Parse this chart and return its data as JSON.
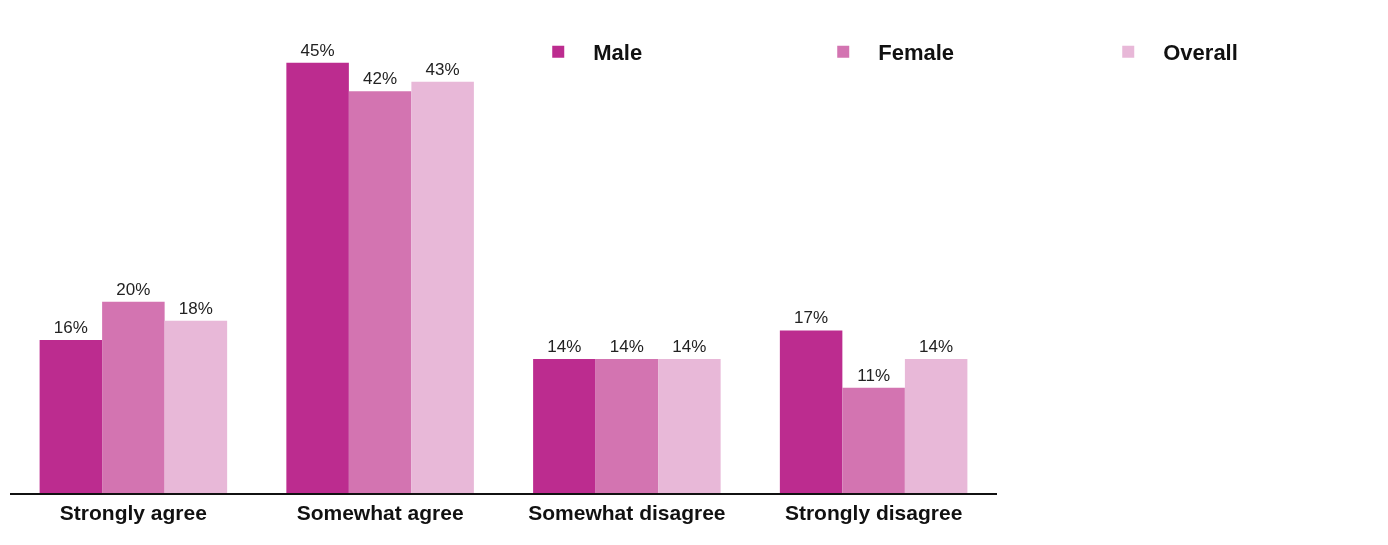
{
  "chart_data": {
    "type": "bar",
    "categories": [
      "Strongly agree",
      "Somewhat agree",
      "Somewhat disagree",
      "Strongly disagree"
    ],
    "series": [
      {
        "name": "Male",
        "color": "#bc2c8f",
        "values": [
          16,
          45,
          14,
          17
        ],
        "value_labels": [
          "16%",
          "45%",
          "14%",
          "17%"
        ]
      },
      {
        "name": "Female",
        "color": "#d374b1",
        "values": [
          20,
          42,
          14,
          11
        ],
        "value_labels": [
          "20%",
          "42%",
          "14%",
          "11%"
        ]
      },
      {
        "name": "Overall",
        "color": "#e8b8d8",
        "values": [
          18,
          43,
          14,
          14
        ],
        "value_labels": [
          "18%",
          "43%",
          "14%",
          "14%"
        ]
      }
    ],
    "tick_labels": "x",
    "legend": "top right"
  }
}
